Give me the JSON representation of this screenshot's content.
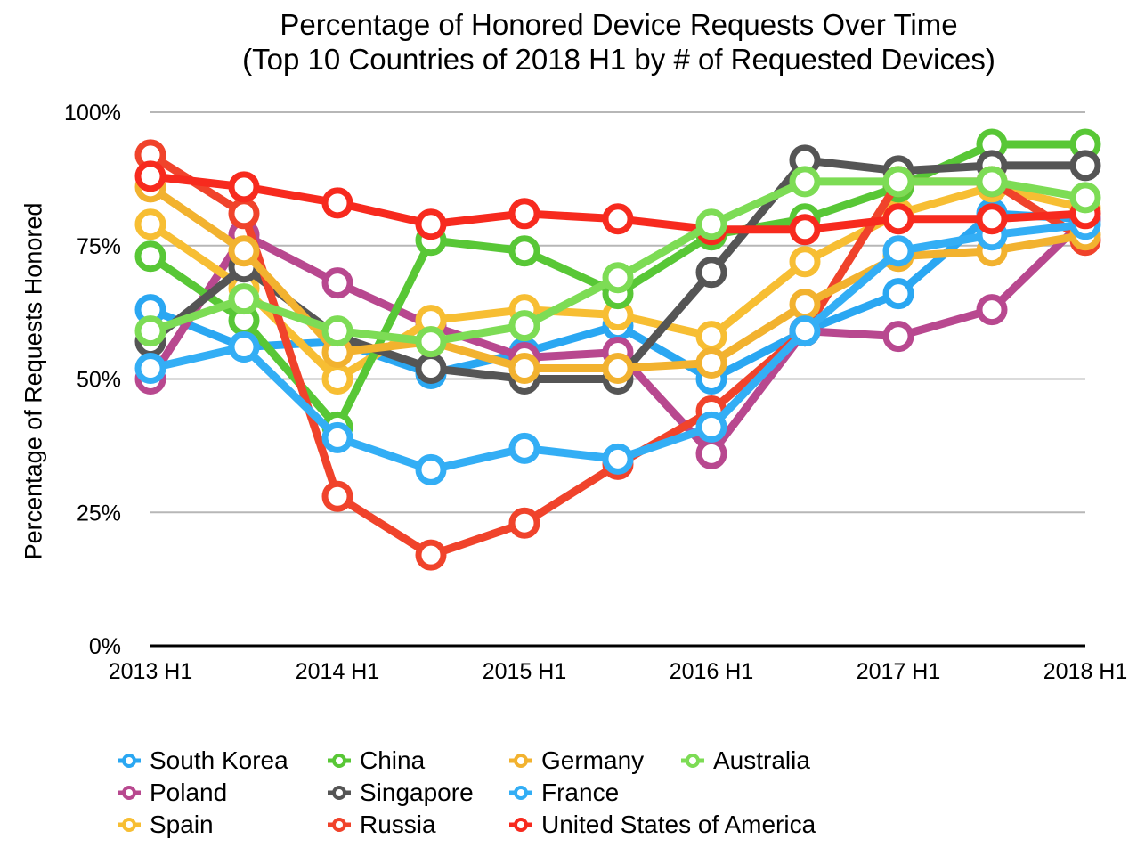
{
  "chart_data": {
    "type": "line",
    "title_lines": [
      "Percentage of Honored Device Requests Over Time",
      "(Top 10 Countries of 2018 H1 by # of Requested Devices)"
    ],
    "xlabel": "",
    "ylabel": "Percentage of Requests Honored",
    "x": [
      "2013 H1",
      "2013 H2",
      "2014 H1",
      "2014 H2",
      "2015 H1",
      "2015 H2",
      "2016 H1",
      "2016 H2",
      "2017 H1",
      "2017 H2",
      "2018 H1"
    ],
    "x_tick_labels": [
      "2013 H1",
      "2014 H1",
      "2015 H1",
      "2016 H1",
      "2017 H1",
      "2018 H1"
    ],
    "ylim": [
      0,
      100
    ],
    "y_tick_labels": [
      "0%",
      "25%",
      "50%",
      "75%",
      "100%"
    ],
    "y_ticks": [
      0,
      25,
      50,
      75,
      100
    ],
    "grid": true,
    "legend_position": "bottom",
    "series": [
      {
        "name": "South Korea",
        "color": "#2AA7F2",
        "values": [
          63,
          56,
          57,
          51,
          55,
          60,
          50,
          59,
          66,
          81,
          80
        ]
      },
      {
        "name": "Poland",
        "color": "#B8488F",
        "values": [
          50,
          77,
          68,
          60,
          54,
          55,
          36,
          59,
          58,
          63,
          80
        ]
      },
      {
        "name": "Spain",
        "color": "#F7BE33",
        "values": [
          79,
          67,
          50,
          61,
          63,
          62,
          58,
          72,
          81,
          86,
          82
        ]
      },
      {
        "name": "China",
        "color": "#58C736",
        "values": [
          73,
          61,
          41,
          76,
          74,
          66,
          77,
          80,
          86,
          94,
          94
        ]
      },
      {
        "name": "Singapore",
        "color": "#555555",
        "values": [
          57,
          71,
          58,
          52,
          50,
          50,
          70,
          91,
          89,
          90,
          90
        ]
      },
      {
        "name": "Russia",
        "color": "#F0432B",
        "values": [
          92,
          81,
          28,
          17,
          23,
          34,
          44,
          59,
          87,
          87,
          76
        ]
      },
      {
        "name": "Germany",
        "color": "#F2B22F",
        "values": [
          86,
          74,
          55,
          57,
          52,
          52,
          53,
          64,
          73,
          74,
          77
        ]
      },
      {
        "name": "France",
        "color": "#33AEF5",
        "values": [
          52,
          56,
          39,
          33,
          37,
          35,
          41,
          59,
          74,
          77,
          79
        ]
      },
      {
        "name": "United States of America",
        "color": "#F72A1E",
        "values": [
          88,
          86,
          83,
          79,
          81,
          80,
          78,
          78,
          80,
          80,
          81
        ]
      },
      {
        "name": "Australia",
        "color": "#7DDC55",
        "values": [
          59,
          65,
          59,
          57,
          60,
          69,
          79,
          87,
          87,
          87,
          84
        ]
      }
    ]
  }
}
